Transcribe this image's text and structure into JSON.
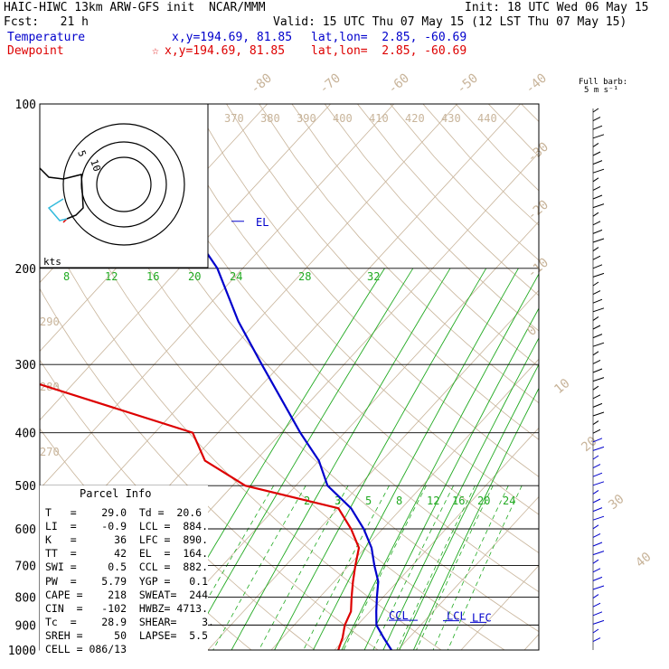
{
  "header": {
    "line1_left": "HAIC-HIWC 13km ARW-GFS init  NCAR/MMM",
    "line1_right": "Init: 18 UTC Wed 06 May 15",
    "line2_left": "Fcst:   21 h",
    "line2_right": "Valid: 15 UTC Thu 07 May 15 (12 LST Thu 07 May 15)",
    "temp_label": "Temperature",
    "temp_xy": "x,y=194.69, 81.85",
    "temp_latlon": "lat,lon=  2.85, -60.69",
    "dew_label": "Dewpoint",
    "dew_marker": "☆",
    "dew_xy": "x,y=194.69, 81.85",
    "dew_latlon": "lat,lon=  2.85, -60.69"
  },
  "barb_key": {
    "title": "Full barb:",
    "value": "5 m s⁻¹"
  },
  "hodograph": {
    "units": "kts",
    "rings": [
      "5",
      "10"
    ]
  },
  "colors": {
    "temperature": "#0000cc",
    "dewpoint": "#dd0000",
    "mixing": "#22aa22",
    "dry": "#c8b49a",
    "axes": "#000000"
  },
  "chart_data": {
    "type": "line",
    "pressure_levels": [
      "100",
      "200",
      "300",
      "400",
      "500",
      "600",
      "700",
      "800",
      "900",
      "1000"
    ],
    "isotherms_top": [
      "-80",
      "-70",
      "-60",
      "-50",
      "-40"
    ],
    "isotherms_right": [
      "-30",
      "-20",
      "-10",
      "0",
      "10",
      "20",
      "30",
      "40"
    ],
    "theta_e_labels": [
      "370",
      "380",
      "390",
      "400",
      "410",
      "420",
      "430",
      "440"
    ],
    "theta_left": [
      "290",
      "280",
      "270"
    ],
    "mixing_upper": [
      "8",
      "12",
      "16",
      "20",
      "24",
      "28",
      "32"
    ],
    "mixing_lower": [
      "2",
      "3",
      "5",
      "8",
      "12",
      "16",
      "20",
      "24"
    ],
    "series": [
      {
        "name": "Temperature",
        "p": [
          100,
          110,
          125,
          150,
          175,
          200,
          250,
          300,
          400,
          450,
          500,
          550,
          600,
          650,
          700,
          750,
          800,
          850,
          900,
          950,
          1000
        ],
        "t": [
          -80,
          -83,
          -84,
          -70,
          -62,
          -54,
          -43,
          -33,
          -17,
          -10,
          -5,
          2,
          7,
          11,
          14,
          17,
          19,
          21,
          23,
          26,
          29.0
        ]
      },
      {
        "name": "Dewpoint",
        "p": [
          100,
          110,
          125,
          150,
          175,
          200,
          250,
          300,
          400,
          450,
          500,
          550,
          600,
          650,
          700,
          750,
          800,
          850,
          900,
          950,
          1000
        ],
        "t": [
          -86,
          -92,
          -94,
          -100,
          -96,
          -95,
          -85,
          -78,
          -34,
          -28,
          -18,
          0,
          5,
          9,
          11,
          13,
          15,
          17,
          18,
          19.5,
          20.6
        ]
      }
    ],
    "levels_marked": [
      {
        "name": "EL",
        "p": 164
      },
      {
        "name": "CCL",
        "p": 882
      },
      {
        "name": "LCL",
        "p": 884
      },
      {
        "name": "LFC",
        "p": 890
      }
    ]
  },
  "parcel": {
    "title": "Parcel Info",
    "rows": [
      "T   =    29.0  Td =  20.6",
      "LI  =    -0.9  LCL =  884.",
      "K   =      36  LFC =  890.",
      "TT  =      42  EL  =  164.",
      "SWI =     0.5  CCL =  882.",
      "PW  =    5.79  YGP =   0.1",
      "CAPE =    218  SWEAT=  244",
      "CIN  =   -102  HWBZ= 4713.",
      "Tc  =    28.9  SHEAR=    3.",
      "SREH =     50  LAPSE=  5.5",
      "CELL = 086/13"
    ]
  }
}
